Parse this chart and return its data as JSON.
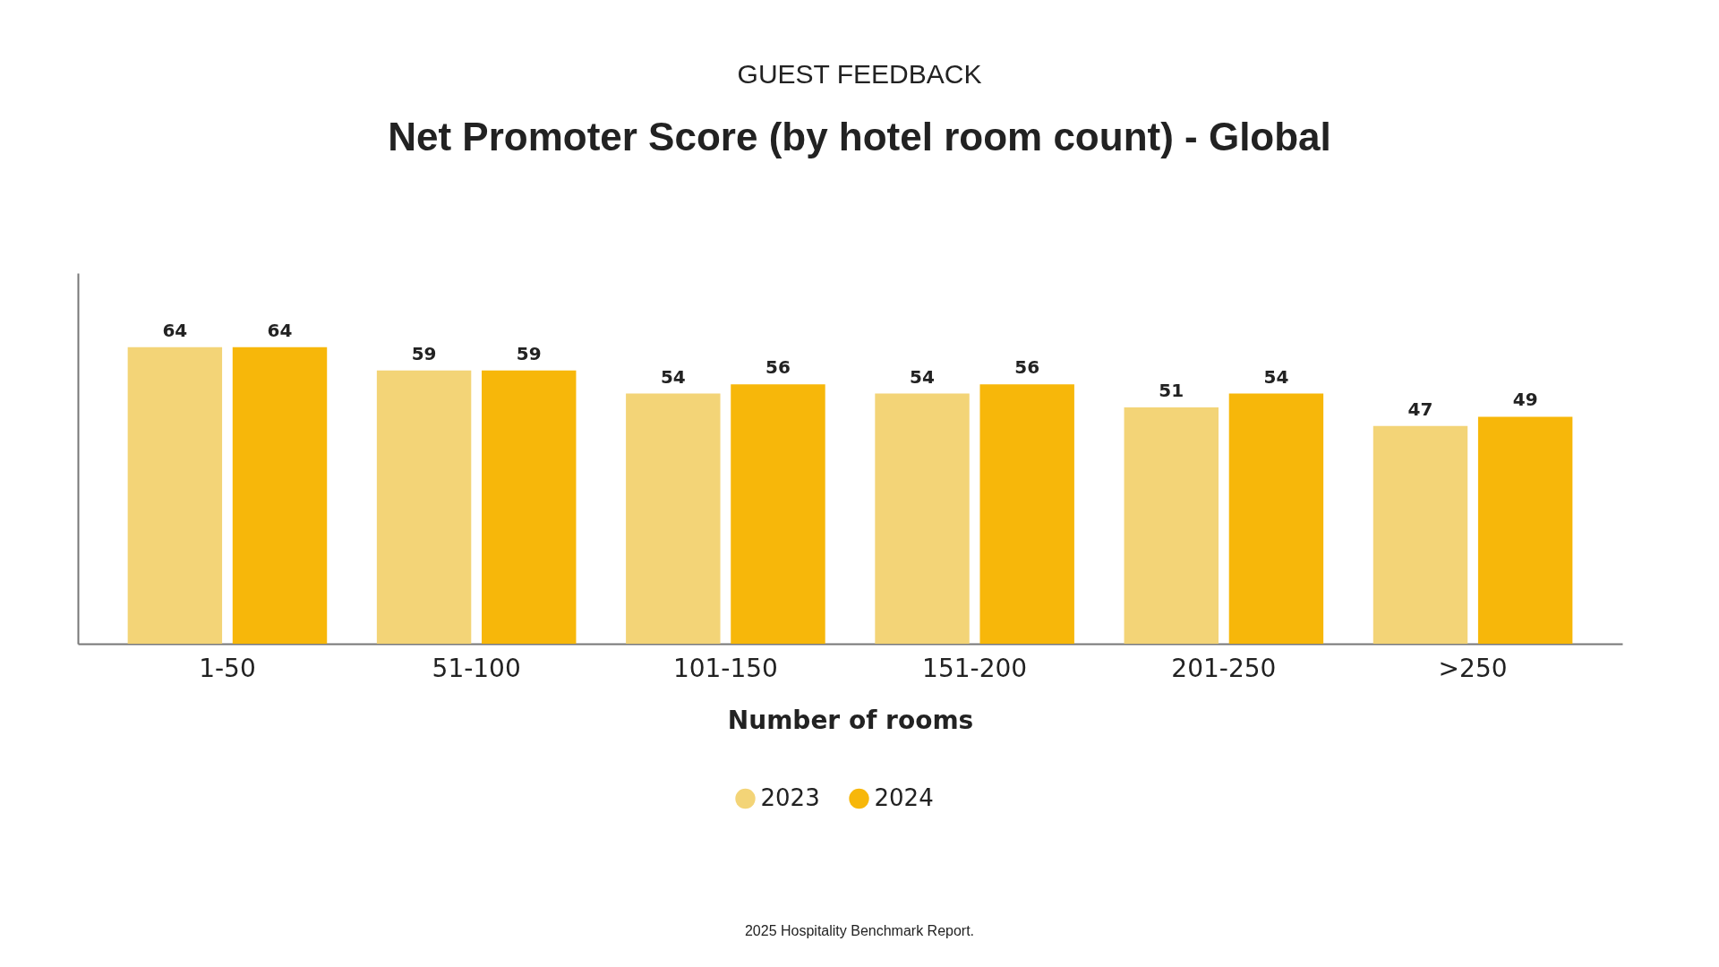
{
  "chart_data": {
    "type": "bar",
    "subtitle": "GUEST FEEDBACK",
    "title": "Net Promoter Score (by hotel room count) - Global",
    "xlabel": "Number of rooms",
    "categories": [
      "1-50",
      "51-100",
      "101-150",
      "151-200",
      "201-250",
      ">250"
    ],
    "series": [
      {
        "name": "2023",
        "color": "#f3d477",
        "values": [
          64,
          59,
          54,
          54,
          51,
          47
        ]
      },
      {
        "name": "2024",
        "color": "#f7b70a",
        "values": [
          64,
          59,
          56,
          56,
          54,
          49
        ]
      }
    ],
    "data_labels": true,
    "legend": "bottom",
    "grid": false,
    "tick_labels": "x",
    "annotations": [
      "2025 Hospitality Benchmark Report."
    ]
  }
}
